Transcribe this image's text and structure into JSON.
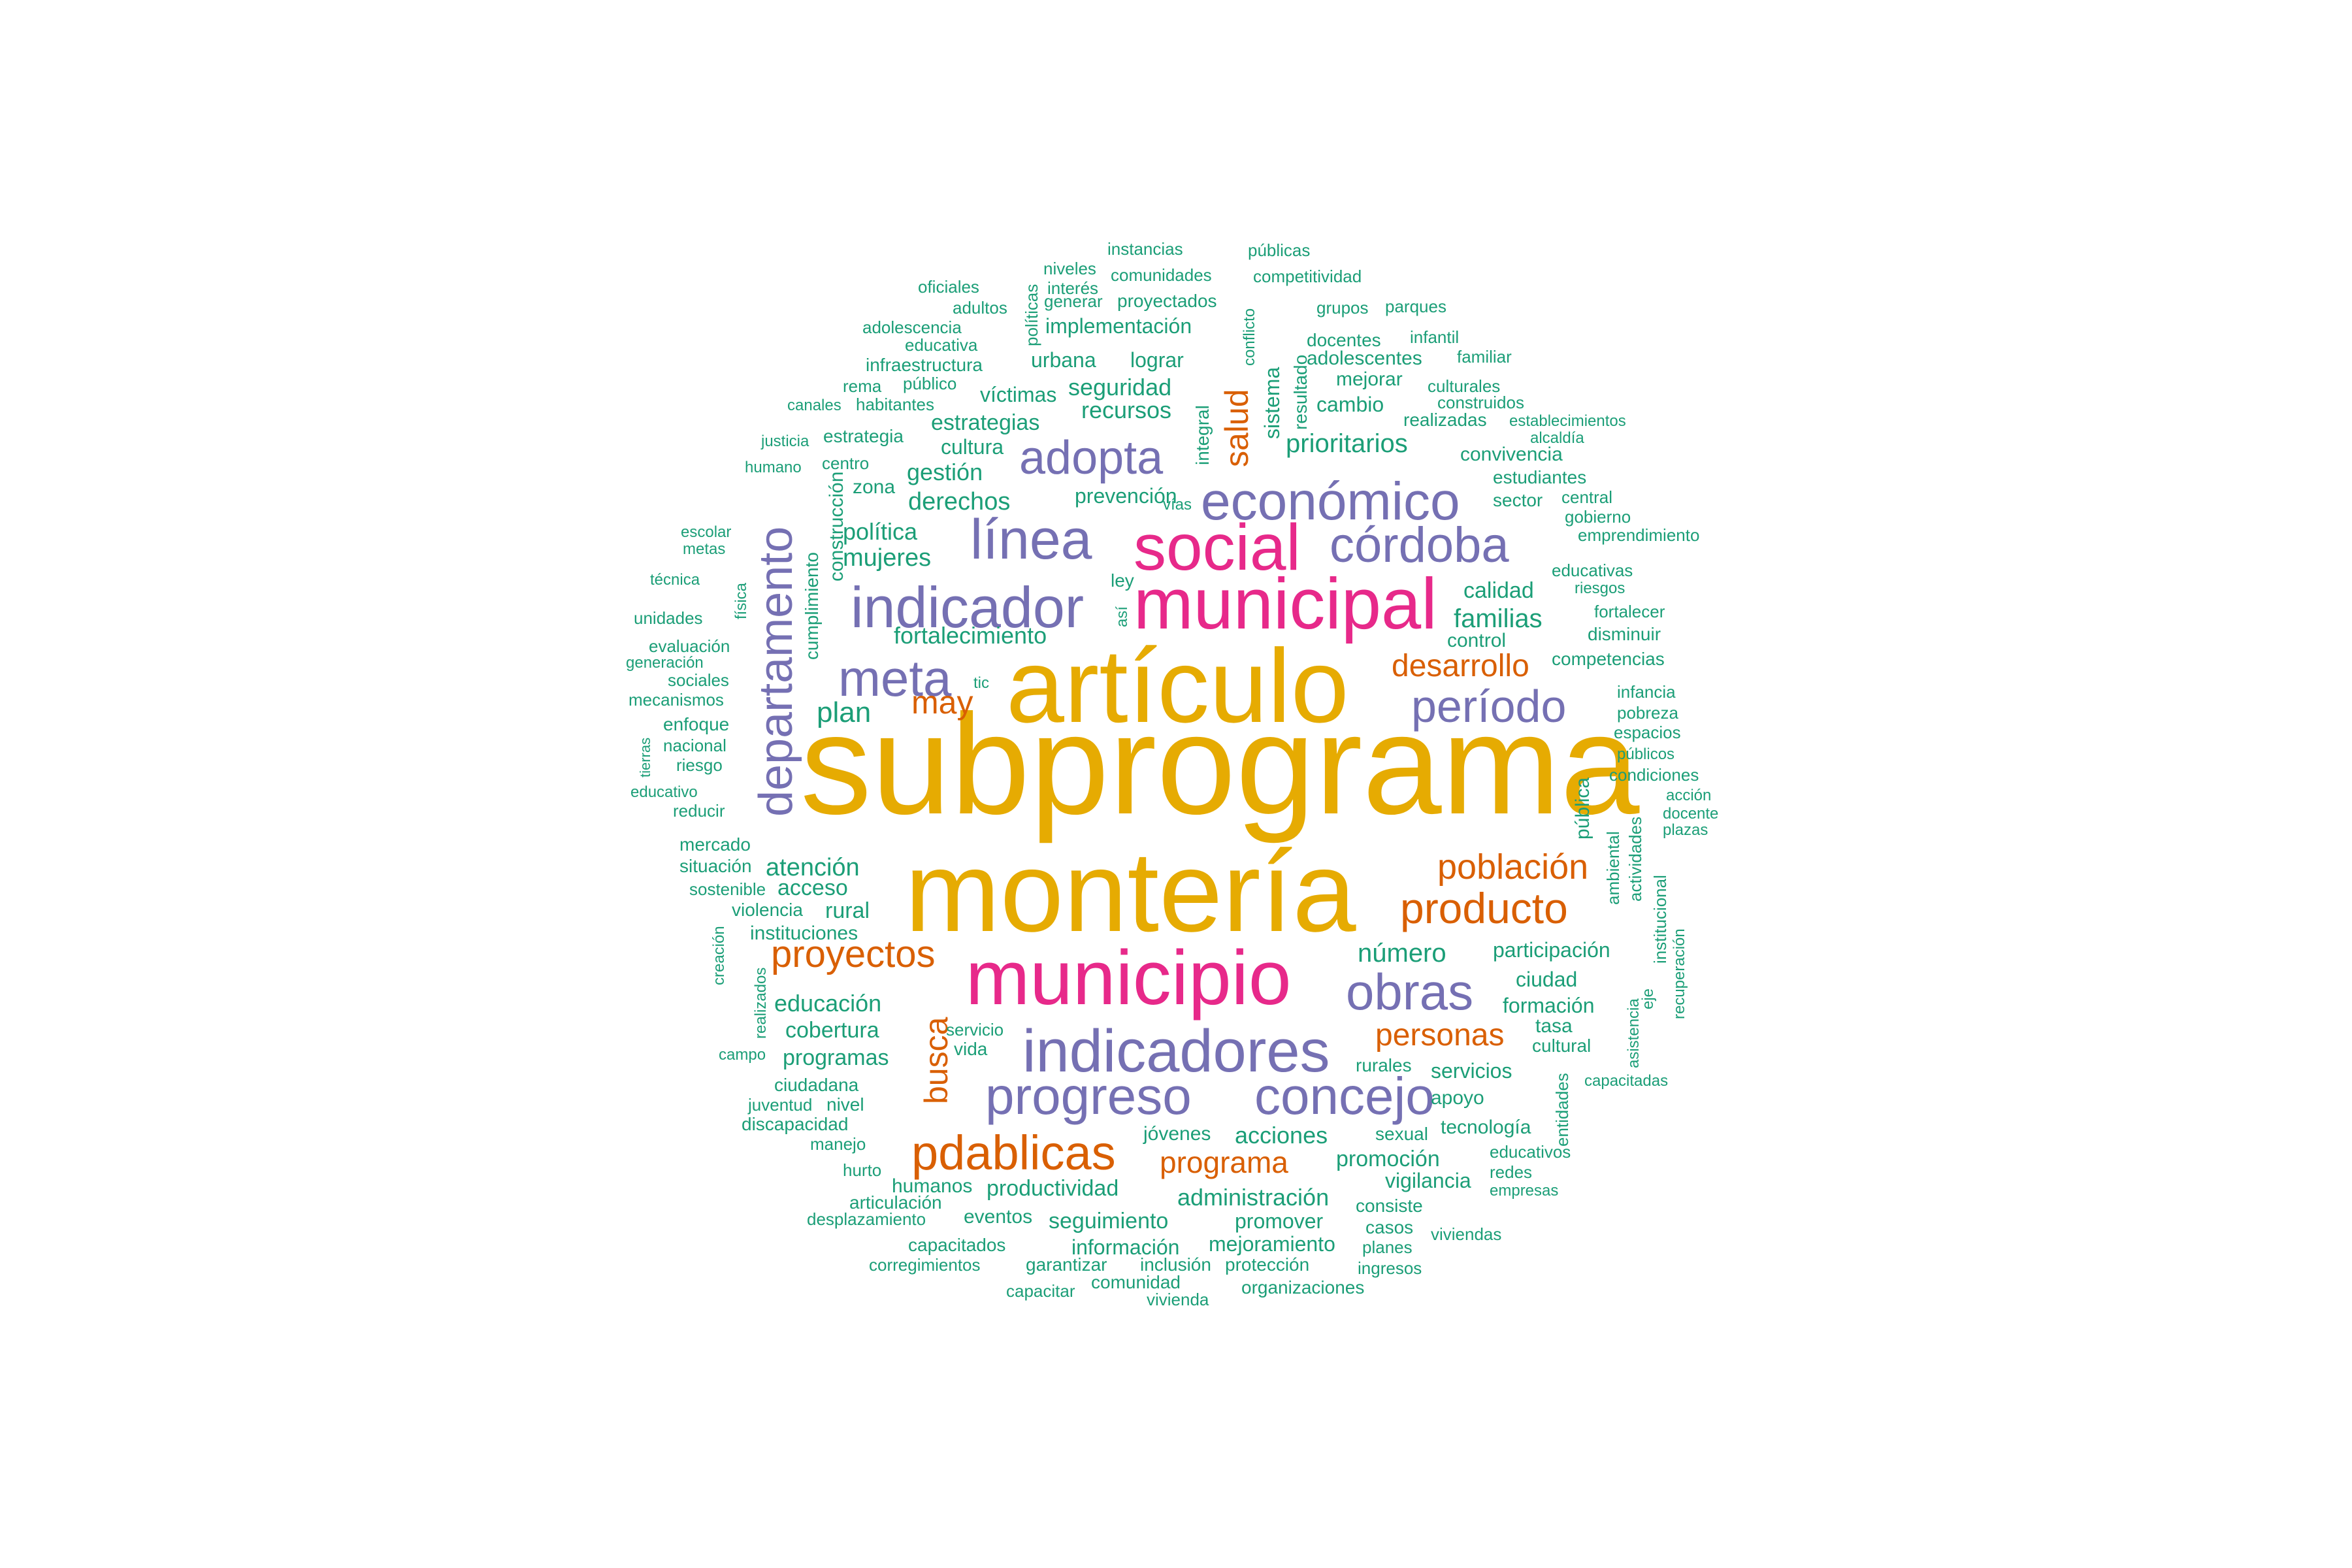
{
  "colors": {
    "gold": "#e6ab02",
    "magenta": "#e7298a",
    "purple": "#7570b3",
    "orange": "#d95f02",
    "green": "#1b9e77"
  },
  "word_groups": [
    {
      "color": "gold",
      "words": [
        "subprograma",
        "artículo",
        "montería"
      ]
    },
    {
      "color": "magenta",
      "words": [
        "municipio",
        "municipal",
        "social"
      ]
    },
    {
      "color": "purple",
      "words": [
        "indicadores",
        "indicador",
        "económico",
        "progreso",
        "concejo",
        "obras",
        "córdoba",
        "línea",
        "meta",
        "adopta",
        "departamento",
        "período"
      ]
    },
    {
      "color": "orange",
      "words": [
        "pdablicas",
        "producto",
        "proyectos",
        "población",
        "personas",
        "desarrollo",
        "programa",
        "salud",
        "busca",
        "may"
      ]
    },
    {
      "color": "green",
      "words": [
        "número",
        "familias",
        "prioritarios",
        "plan",
        "atención",
        "mujeres",
        "política",
        "fortalecimiento",
        "calidad",
        "derechos",
        "gestión",
        "estrategias",
        "recursos",
        "seguridad",
        "educación",
        "cobertura",
        "programas",
        "acciones",
        "administración",
        "productividad",
        "seguimiento",
        "información",
        "mejoramiento",
        "promover",
        "promoción",
        "vigilancia",
        "rural",
        "acceso",
        "participación",
        "ciudad",
        "formación",
        "servicios",
        "apoyo",
        "tecnología",
        "implementación",
        "urbana",
        "lograr",
        "víctimas",
        "cultura",
        "prevención",
        "construcción",
        "cumplimiento",
        "sistema",
        "resultado",
        "integral",
        "conflicto",
        "cambio",
        "mejorar",
        "control",
        "competencias",
        "convivencia",
        "estudiantes",
        "sector",
        "central",
        "gobierno",
        "emprendimiento",
        "educativas",
        "riesgos",
        "fortalecer",
        "disminuir",
        "infancia",
        "pobreza",
        "espacios",
        "públicos",
        "condiciones",
        "acción",
        "docente",
        "plazas",
        "ambiental",
        "actividades",
        "institucional",
        "pública",
        "recuperación",
        "eje",
        "asistencia",
        "entidades",
        "tasa",
        "cultural",
        "capacitadas",
        "rurales",
        "sexual",
        "jóvenes",
        "educativos",
        "redes",
        "empresas",
        "consiste",
        "casos",
        "viviendas",
        "planes",
        "ingresos",
        "organizaciones",
        "protección",
        "inclusión",
        "comunidad",
        "vivienda",
        "capacitar",
        "garantizar",
        "capacitados",
        "corregimientos",
        "eventos",
        "articulación",
        "desplazamiento",
        "humanos",
        "hurto",
        "manejo",
        "discapacidad",
        "juventud",
        "nivel",
        "ciudadana",
        "campo",
        "vida",
        "servicio",
        "realizados",
        "creación",
        "violencia",
        "instituciones",
        "sostenible",
        "situación",
        "mercado",
        "reducir",
        "educativo",
        "riesgo",
        "nacional",
        "enfoque",
        "tierras",
        "mecanismos",
        "sociales",
        "generación",
        "evaluación",
        "unidades",
        "física",
        "técnica",
        "metas",
        "escolar",
        "humano",
        "justicia",
        "centro",
        "zona",
        "estrategia",
        "canales",
        "habitantes",
        "rema",
        "público",
        "infraestructura",
        "educativa",
        "adolescencia",
        "adultos",
        "oficiales",
        "políticas",
        "interés",
        "niveles",
        "generar",
        "instancias",
        "comunidades",
        "públicas",
        "competitividad",
        "proyectados",
        "grupos",
        "parques",
        "docentes",
        "infantil",
        "adolescentes",
        "familiar",
        "culturales",
        "construidos",
        "realizadas",
        "establecimientos",
        "alcaldía",
        "vías",
        "ley",
        "así",
        "tic"
      ]
    }
  ]
}
